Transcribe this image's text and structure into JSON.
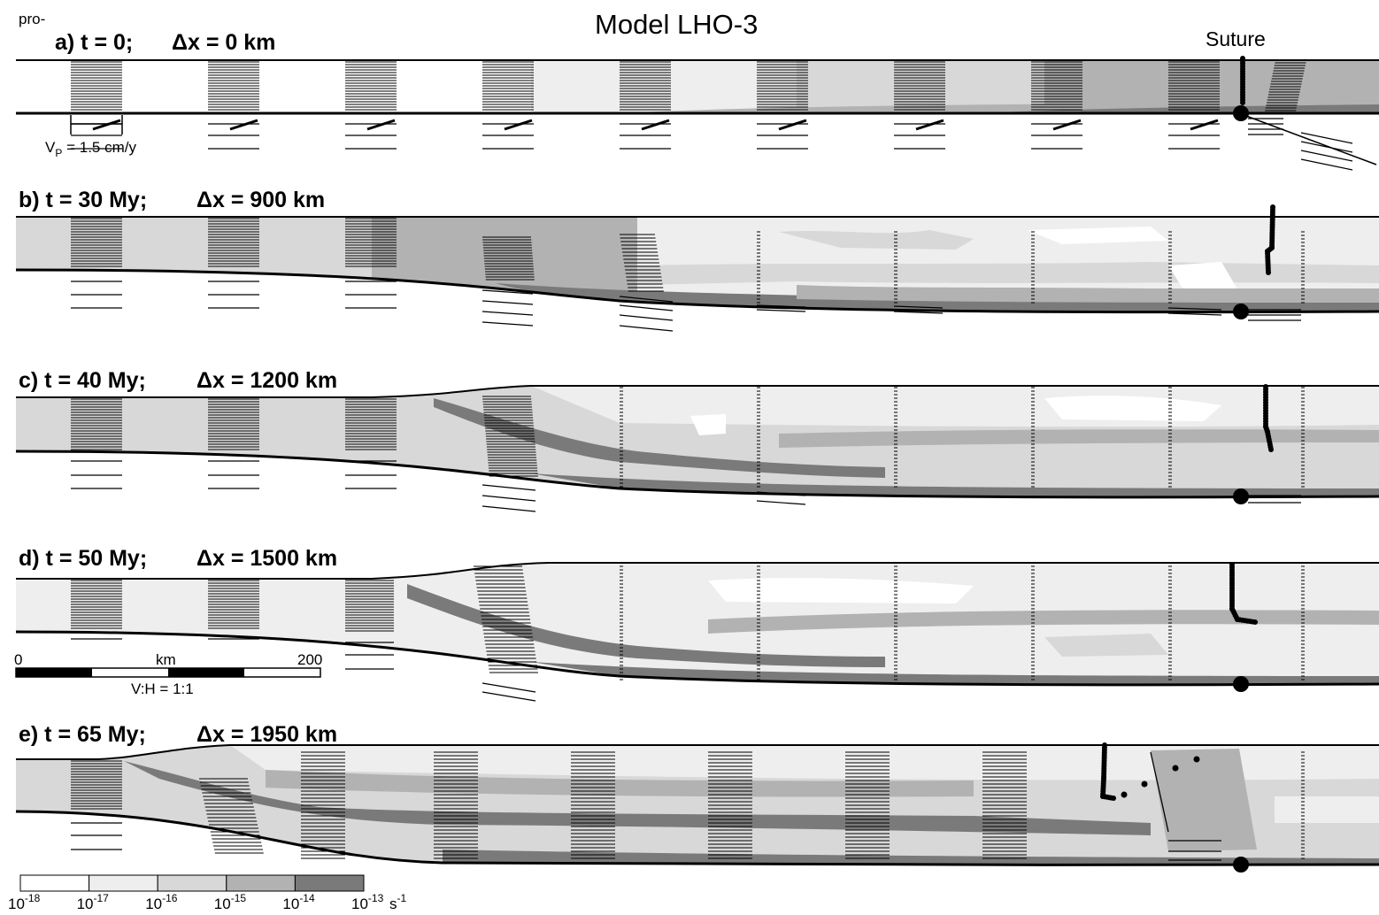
{
  "title": "Model LHO-3",
  "side_label": "pro-",
  "suture_label": "Suture",
  "velocity_label": {
    "prefix": "V",
    "sub": "P",
    "rest": " = 1.5 cm/y"
  },
  "panels": [
    {
      "id": "a",
      "label": "a) t = 0;",
      "dx": "Δx = 0 km"
    },
    {
      "id": "b",
      "label": "b) t = 30 My;",
      "dx": "Δx = 900 km"
    },
    {
      "id": "c",
      "label": "c) t = 40 My;",
      "dx": "Δx = 1200 km"
    },
    {
      "id": "d",
      "label": "d) t = 50 My;",
      "dx": "Δx = 1500 km"
    },
    {
      "id": "e",
      "label": "e) t = 65 My;",
      "dx": "Δx = 1950 km"
    }
  ],
  "scale_bar": {
    "start": "0",
    "unit": "km",
    "end": "200",
    "ratio": "V:H = 1:1"
  },
  "colorbar": {
    "unit": "s",
    "unit_exp": "-1",
    "ticks": [
      {
        "base": "10",
        "exp": "-18"
      },
      {
        "base": "10",
        "exp": "-17"
      },
      {
        "base": "10",
        "exp": "-16"
      },
      {
        "base": "10",
        "exp": "-15"
      },
      {
        "base": "10",
        "exp": "-14"
      },
      {
        "base": "10",
        "exp": "-13"
      }
    ],
    "colors": [
      "#ffffff",
      "#eeeeee",
      "#d8d8d8",
      "#b2b2b2",
      "#7a7a7a"
    ]
  }
}
